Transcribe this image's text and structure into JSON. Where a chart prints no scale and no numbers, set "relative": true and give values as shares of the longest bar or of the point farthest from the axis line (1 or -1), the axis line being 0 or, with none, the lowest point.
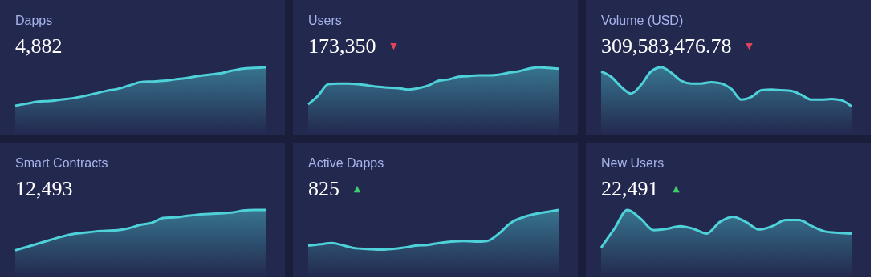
{
  "chart_data": [
    {
      "type": "area",
      "relative": true,
      "title": "Dapps",
      "subtitle": "4,882",
      "categories": [
        null,
        null,
        null,
        null,
        null,
        null,
        null,
        null,
        null,
        null,
        null,
        null,
        null,
        null,
        null,
        null,
        null,
        null,
        null,
        null,
        null,
        null,
        null
      ],
      "series": [
        {
          "color": "#4fd1d9",
          "values": [
            0.43,
            0.46,
            0.49,
            0.5,
            0.52,
            0.54,
            0.57,
            0.61,
            0.65,
            0.68,
            0.73,
            0.78,
            0.79,
            0.8,
            0.82,
            0.84,
            0.87,
            0.89,
            0.91,
            0.95,
            0.98,
            0.99,
            1
          ]
        }
      ]
    },
    {
      "type": "area",
      "relative": true,
      "title": "Users",
      "subtitle": "173,350",
      "annotations": [
        "▼"
      ],
      "categories": [
        null,
        null,
        null,
        null,
        null,
        null,
        null,
        null,
        null,
        null,
        null,
        null,
        null,
        null,
        null,
        null,
        null,
        null,
        null,
        null,
        null,
        null,
        null,
        null,
        null,
        null
      ],
      "series": [
        {
          "color": "#4fd1d9",
          "values": [
            0.45,
            0.58,
            0.75,
            0.76,
            0.76,
            0.75,
            0.73,
            0.71,
            0.7,
            0.69,
            0.67,
            0.69,
            0.73,
            0.8,
            0.82,
            0.86,
            0.87,
            0.88,
            0.88,
            0.89,
            0.92,
            0.94,
            0.98,
            1,
            0.99,
            0.98
          ]
        }
      ]
    },
    {
      "type": "area",
      "relative": true,
      "title": "Volume (USD)",
      "subtitle": "309,583,476.78",
      "annotations": [
        "▼"
      ],
      "categories": [
        null,
        null,
        null,
        null,
        null,
        null,
        null,
        null,
        null,
        null,
        null,
        null,
        null,
        null,
        null,
        null,
        null,
        null,
        null,
        null,
        null,
        null,
        null,
        null,
        null,
        null
      ],
      "series": [
        {
          "color": "#4fd1d9",
          "values": [
            0.94,
            0.86,
            0.71,
            0.61,
            0.74,
            0.94,
            1,
            0.92,
            0.8,
            0.76,
            0.76,
            0.78,
            0.76,
            0.68,
            0.52,
            0.56,
            0.66,
            0.67,
            0.66,
            0.65,
            0.59,
            0.52,
            0.52,
            0.53,
            0.51,
            0.42
          ]
        }
      ]
    },
    {
      "type": "area",
      "relative": true,
      "title": "Smart Contracts",
      "subtitle": "12,493",
      "categories": [
        null,
        null,
        null,
        null,
        null,
        null,
        null,
        null,
        null,
        null,
        null,
        null,
        null,
        null,
        null,
        null,
        null,
        null,
        null,
        null,
        null,
        null,
        null
      ],
      "series": [
        {
          "color": "#4fd1d9",
          "values": [
            0.4,
            0.45,
            0.5,
            0.55,
            0.6,
            0.64,
            0.66,
            0.68,
            0.69,
            0.7,
            0.73,
            0.78,
            0.81,
            0.88,
            0.89,
            0.91,
            0.93,
            0.94,
            0.95,
            0.96,
            0.99,
            1,
            1
          ]
        }
      ]
    },
    {
      "type": "area",
      "relative": true,
      "title": "Active Dapps",
      "subtitle": "825",
      "annotations": [
        "▲"
      ],
      "categories": [
        null,
        null,
        null,
        null,
        null,
        null,
        null,
        null,
        null,
        null,
        null,
        null,
        null,
        null,
        null,
        null,
        null,
        null,
        null,
        null,
        null,
        null
      ],
      "series": [
        {
          "color": "#4fd1d9",
          "values": [
            0.47,
            0.49,
            0.51,
            0.47,
            0.43,
            0.42,
            0.41,
            0.42,
            0.44,
            0.47,
            0.48,
            0.51,
            0.53,
            0.54,
            0.53,
            0.54,
            0.65,
            0.81,
            0.89,
            0.94,
            0.97,
            1
          ]
        }
      ]
    },
    {
      "type": "area",
      "relative": true,
      "title": "New Users",
      "subtitle": "22,491",
      "annotations": [
        "▲"
      ],
      "categories": [
        null,
        null,
        null,
        null,
        null,
        null,
        null,
        null,
        null,
        null,
        null,
        null,
        null,
        null,
        null,
        null,
        null,
        null,
        null,
        null
      ],
      "series": [
        {
          "color": "#4fd1d9",
          "values": [
            0.44,
            0.72,
            1,
            0.87,
            0.7,
            0.72,
            0.76,
            0.72,
            0.65,
            0.82,
            0.9,
            0.82,
            0.71,
            0.76,
            0.85,
            0.85,
            0.76,
            0.68,
            0.66,
            0.65
          ]
        }
      ]
    }
  ]
}
